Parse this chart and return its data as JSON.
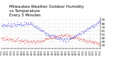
{
  "title": "Milwaukee Weather Outdoor Humidity\nvs Temperature\nEvery 5 Minutes",
  "title_fontsize": 4.0,
  "background_color": "#ffffff",
  "grid_color": "#c0c0c0",
  "blue_color": "#0000cc",
  "red_color": "#cc0000",
  "yticks": [
    20,
    30,
    40,
    50,
    60,
    70,
    80,
    90
  ],
  "ylim": [
    12,
    97
  ],
  "xlim_n": 300,
  "num_points": 300,
  "dot_size": 0.15,
  "num_vgrid": 30,
  "figwidth": 1.6,
  "figheight": 0.87,
  "dpi": 100
}
